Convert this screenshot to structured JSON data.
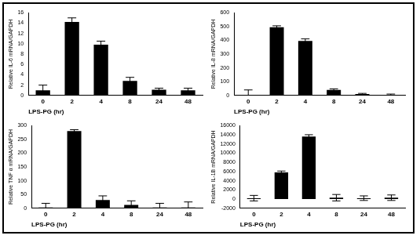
{
  "chart_data": [
    {
      "type": "bar",
      "y_label": "Relative IL-6 mRNA/GAPDH",
      "x_label": "LPS-PG (hr)",
      "categories": [
        "0",
        "2",
        "4",
        "8",
        "24",
        "48"
      ],
      "values": [
        1.0,
        14.2,
        9.8,
        2.8,
        1.1,
        1.0
      ],
      "errors": [
        1.0,
        0.8,
        0.7,
        0.7,
        0.3,
        0.4
      ],
      "color": "#000000",
      "ylim": [
        0,
        16
      ],
      "yticks": [
        0,
        2,
        4,
        6,
        8,
        10,
        12,
        14,
        16
      ],
      "grid": false
    },
    {
      "type": "bar",
      "y_label": "Relative IL-8 mRNA/GAPDH",
      "x_label": "LPS-PG (hr)",
      "categories": [
        "0",
        "2",
        "4",
        "8",
        "24",
        "48"
      ],
      "values": [
        5,
        495,
        395,
        40,
        10,
        5
      ],
      "errors": [
        35,
        10,
        15,
        8,
        5,
        5
      ],
      "color": "#000000",
      "ylim": [
        0,
        600
      ],
      "yticks": [
        0,
        100,
        200,
        300,
        400,
        500,
        600
      ],
      "grid": false
    },
    {
      "type": "bar",
      "y_label": "Relative TNF α mRNA/GAPDH",
      "x_label": "LPS-PG (hr)",
      "categories": [
        "0",
        "2",
        "4",
        "8",
        "24",
        "48"
      ],
      "values": [
        3,
        280,
        30,
        12,
        3,
        3
      ],
      "errors": [
        15,
        5,
        15,
        15,
        15,
        20
      ],
      "color": "#000000",
      "ylim": [
        0,
        300
      ],
      "yticks": [
        0,
        50,
        100,
        150,
        200,
        250,
        300
      ],
      "grid": false
    },
    {
      "type": "bar",
      "y_label": "Relative IL-1B mRNA/GAPDH",
      "x_label": "LPS-PG (hr)",
      "categories": [
        "0",
        "2",
        "4",
        "8",
        "24",
        "48"
      ],
      "values": [
        200,
        5800,
        13600,
        300,
        200,
        300
      ],
      "errors": [
        600,
        300,
        400,
        700,
        500,
        600
      ],
      "color": "#000000",
      "ylim": [
        -2000,
        16000
      ],
      "yticks": [
        -2000,
        0,
        2000,
        4000,
        6000,
        8000,
        10000,
        12000,
        14000,
        16000
      ],
      "grid": false
    }
  ]
}
